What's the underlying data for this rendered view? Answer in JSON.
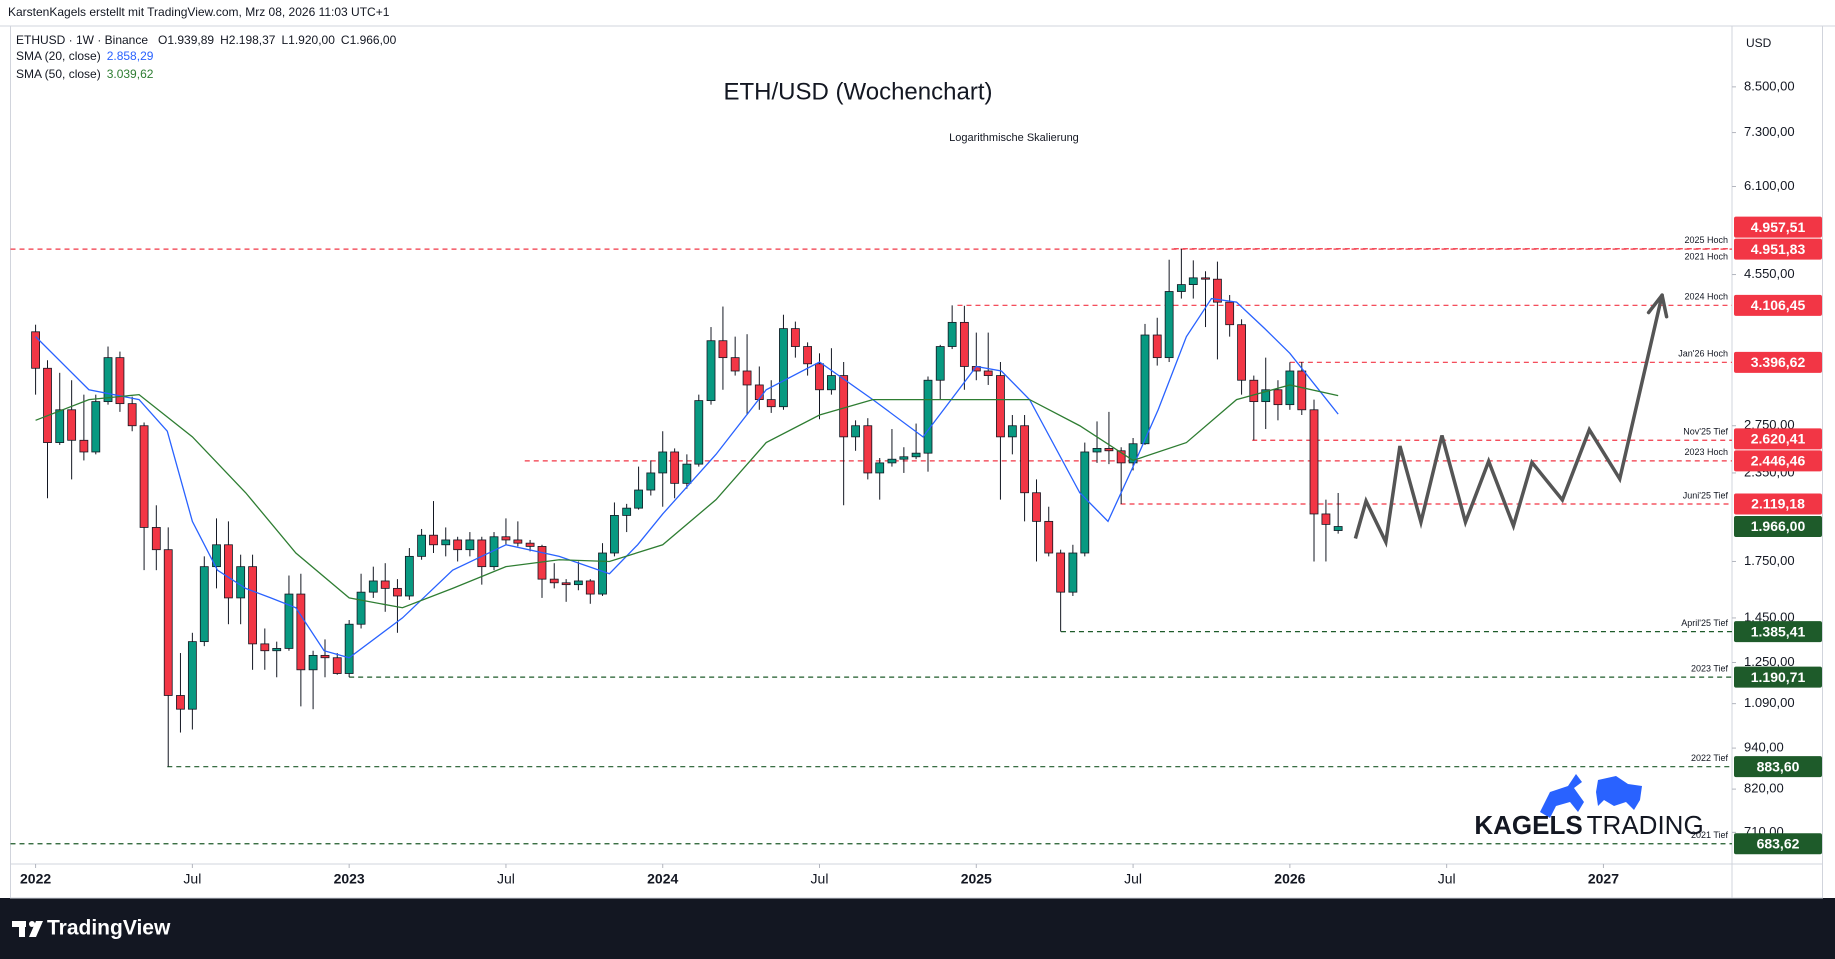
{
  "header": {
    "attribution": "KarstenKagels erstellt mit TradingView.com, Mrz 08, 2026 11:03 UTC+1"
  },
  "chart_data": {
    "type": "candlestick",
    "title": "ETH/USD (Wochenchart)",
    "subtitle": "Logarithmische Skalierung",
    "symbol_line": "ETHUSD · 1W · Binance",
    "last_bar": {
      "labels": [
        "O",
        "H",
        "L",
        "C"
      ],
      "values": [
        1939.89,
        2198.37,
        1920,
        1966
      ],
      "value_labels": [
        "1.939,89",
        "2.198,37",
        "1.920,00",
        "1.966,00"
      ]
    },
    "currency": "USD",
    "log_scale": true,
    "grid": false,
    "xlim": [
      2021.92,
      2027.41
    ],
    "ylim": [
      639,
      10410
    ],
    "xticks": [
      2022,
      {
        "value": 2022.5,
        "label": "Jul"
      },
      2023,
      {
        "value": 2023.5,
        "label": "Jul"
      },
      2024,
      {
        "value": 2024.5,
        "label": "Jul"
      },
      2025,
      {
        "value": 2025.5,
        "label": "Jul"
      },
      2026,
      {
        "value": 2026.5,
        "label": "Jul"
      },
      2027
    ],
    "yticks": [
      {
        "value": 8500,
        "label": "8.500,00"
      },
      {
        "value": 7300,
        "label": "7.300,00"
      },
      {
        "value": 6100,
        "label": "6.100,00"
      },
      {
        "value": 4550,
        "label": "4.550,00"
      },
      {
        "value": 2750,
        "label": "2.750,00"
      },
      {
        "value": 2350,
        "label": "2.350,00"
      },
      {
        "value": 1750,
        "label": "1.750,00"
      },
      {
        "value": 1450,
        "label": "1.450,00"
      },
      {
        "value": 1250,
        "label": "1.250,00"
      },
      {
        "value": 1090,
        "label": "1.090,00"
      },
      {
        "value": 940,
        "label": "940,00"
      },
      {
        "value": 820,
        "label": "820,00"
      },
      {
        "value": 710,
        "label": "710,00"
      }
    ],
    "x": [
      2022.0,
      2022.038,
      2022.077,
      2022.115,
      2022.154,
      2022.192,
      2022.231,
      2022.269,
      2022.308,
      2022.346,
      2022.385,
      2022.423,
      2022.462,
      2022.5,
      2022.538,
      2022.577,
      2022.615,
      2022.654,
      2022.692,
      2022.731,
      2022.769,
      2022.808,
      2022.846,
      2022.885,
      2022.923,
      2022.962,
      2023.0,
      2023.038,
      2023.077,
      2023.115,
      2023.154,
      2023.192,
      2023.231,
      2023.269,
      2023.308,
      2023.346,
      2023.385,
      2023.423,
      2023.462,
      2023.5,
      2023.538,
      2023.577,
      2023.615,
      2023.654,
      2023.692,
      2023.731,
      2023.769,
      2023.808,
      2023.846,
      2023.885,
      2023.923,
      2023.962,
      2024.0,
      2024.038,
      2024.077,
      2024.115,
      2024.154,
      2024.192,
      2024.231,
      2024.269,
      2024.308,
      2024.346,
      2024.385,
      2024.423,
      2024.462,
      2024.5,
      2024.538,
      2024.577,
      2024.615,
      2024.654,
      2024.692,
      2024.731,
      2024.769,
      2024.808,
      2024.846,
      2024.885,
      2024.923,
      2024.962,
      2025.0,
      2025.038,
      2025.077,
      2025.115,
      2025.154,
      2025.192,
      2025.231,
      2025.269,
      2025.308,
      2025.346,
      2025.385,
      2025.423,
      2025.462,
      2025.5,
      2025.538,
      2025.577,
      2025.615,
      2025.654,
      2025.692,
      2025.731,
      2025.769,
      2025.808,
      2025.846,
      2025.885,
      2025.923,
      2025.962,
      2026.0,
      2026.038,
      2026.077,
      2026.115,
      2026.154
    ],
    "series": [
      {
        "name": "ETHUSD",
        "up_color": "#089981",
        "down_color": "#f23645",
        "values": [
          [
            3760,
            3850,
            3050,
            3330
          ],
          [
            3330,
            3420,
            2160,
            2600
          ],
          [
            2600,
            3280,
            2580,
            2900
          ],
          [
            2900,
            3200,
            2300,
            2620
          ],
          [
            2620,
            3050,
            2450,
            2520
          ],
          [
            2520,
            3050,
            2500,
            2980
          ],
          [
            2980,
            3580,
            2950,
            3450
          ],
          [
            3450,
            3520,
            2880,
            2960
          ],
          [
            2960,
            3030,
            2700,
            2750
          ],
          [
            2750,
            2780,
            1700,
            1960
          ],
          [
            1960,
            2110,
            1700,
            1820
          ],
          [
            1820,
            1960,
            883.6,
            1120
          ],
          [
            1120,
            1290,
            990,
            1070
          ],
          [
            1070,
            1380,
            1000,
            1340
          ],
          [
            1340,
            1780,
            1320,
            1720
          ],
          [
            1720,
            2020,
            1600,
            1850
          ],
          [
            1850,
            2000,
            1420,
            1550
          ],
          [
            1550,
            1790,
            1420,
            1720
          ],
          [
            1720,
            1790,
            1220,
            1330
          ],
          [
            1330,
            1400,
            1220,
            1300
          ],
          [
            1300,
            1340,
            1190,
            1310
          ],
          [
            1310,
            1670,
            1300,
            1570
          ],
          [
            1570,
            1680,
            1080,
            1220
          ],
          [
            1220,
            1300,
            1070,
            1280
          ],
          [
            1280,
            1350,
            1190,
            1270
          ],
          [
            1270,
            1290,
            1200,
            1205
          ],
          [
            1205,
            1440,
            1190.71,
            1420
          ],
          [
            1420,
            1680,
            1400,
            1580
          ],
          [
            1580,
            1720,
            1550,
            1640
          ],
          [
            1640,
            1740,
            1480,
            1600
          ],
          [
            1600,
            1650,
            1380,
            1560
          ],
          [
            1560,
            1830,
            1540,
            1780
          ],
          [
            1780,
            1950,
            1760,
            1910
          ],
          [
            1910,
            2140,
            1800,
            1850
          ],
          [
            1850,
            1960,
            1780,
            1880
          ],
          [
            1880,
            1900,
            1750,
            1820
          ],
          [
            1820,
            1930,
            1780,
            1880
          ],
          [
            1880,
            1900,
            1620,
            1720
          ],
          [
            1720,
            1930,
            1700,
            1900
          ],
          [
            1900,
            2020,
            1850,
            1880
          ],
          [
            1880,
            2000,
            1840,
            1860
          ],
          [
            1860,
            1880,
            1810,
            1840
          ],
          [
            1840,
            1850,
            1550,
            1650
          ],
          [
            1650,
            1740,
            1600,
            1630
          ],
          [
            1630,
            1650,
            1530,
            1620
          ],
          [
            1620,
            1750,
            1590,
            1640
          ],
          [
            1640,
            1650,
            1520,
            1570
          ],
          [
            1570,
            1860,
            1560,
            1800
          ],
          [
            1800,
            2130,
            1780,
            2040
          ],
          [
            2040,
            2120,
            1930,
            2090
          ],
          [
            2090,
            2400,
            2080,
            2220
          ],
          [
            2220,
            2450,
            2180,
            2350
          ],
          [
            2350,
            2700,
            2100,
            2520
          ],
          [
            2520,
            2550,
            2160,
            2270
          ],
          [
            2270,
            2500,
            2230,
            2420
          ],
          [
            2420,
            3050,
            2400,
            2990
          ],
          [
            2990,
            3820,
            2950,
            3650
          ],
          [
            3650,
            4090,
            3100,
            3450
          ],
          [
            3450,
            3700,
            3250,
            3300
          ],
          [
            3300,
            3730,
            2850,
            3150
          ],
          [
            3150,
            3350,
            2900,
            3000
          ],
          [
            3000,
            3200,
            2870,
            2930
          ],
          [
            2930,
            3980,
            2900,
            3800
          ],
          [
            3800,
            3890,
            3450,
            3580
          ],
          [
            3580,
            3630,
            3250,
            3380
          ],
          [
            3380,
            3500,
            2810,
            3100
          ],
          [
            3100,
            3560,
            3050,
            3250
          ],
          [
            3250,
            3400,
            2110,
            2650
          ],
          [
            2650,
            2800,
            2530,
            2750
          ],
          [
            2750,
            2820,
            2300,
            2350
          ],
          [
            2350,
            2470,
            2150,
            2430
          ],
          [
            2430,
            2720,
            2400,
            2460
          ],
          [
            2460,
            2560,
            2350,
            2480
          ],
          [
            2480,
            2770,
            2460,
            2510
          ],
          [
            2510,
            3240,
            2360,
            3200
          ],
          [
            3200,
            3600,
            3000,
            3580
          ],
          [
            3580,
            4106.45,
            3550,
            3880
          ],
          [
            3880,
            4100,
            3100,
            3350
          ],
          [
            3350,
            3750,
            3200,
            3300
          ],
          [
            3300,
            3750,
            3150,
            3250
          ],
          [
            3250,
            3400,
            2150,
            2650
          ],
          [
            2650,
            2850,
            2500,
            2750
          ],
          [
            2750,
            2850,
            2000,
            2200
          ],
          [
            2200,
            2300,
            1750,
            2000
          ],
          [
            2000,
            2100,
            1780,
            1800
          ],
          [
            1800,
            1820,
            1385.41,
            1580
          ],
          [
            1580,
            1850,
            1560,
            1800
          ],
          [
            1800,
            2600,
            1780,
            2520
          ],
          [
            2520,
            2790,
            2430,
            2550
          ],
          [
            2550,
            2880,
            2420,
            2530
          ],
          [
            2530,
            2560,
            2119.18,
            2430
          ],
          [
            2430,
            2640,
            2370,
            2590
          ],
          [
            2590,
            3860,
            2580,
            3720
          ],
          [
            3720,
            3940,
            3360,
            3450
          ],
          [
            3450,
            4780,
            3400,
            4300
          ],
          [
            4300,
            4957.51,
            4200,
            4400
          ],
          [
            4400,
            4770,
            4200,
            4500
          ],
          [
            4500,
            4600,
            3820,
            4480
          ],
          [
            4480,
            4750,
            3430,
            4150
          ],
          [
            4150,
            4250,
            3700,
            3850
          ],
          [
            3850,
            3920,
            3050,
            3200
          ],
          [
            3200,
            3250,
            2620.41,
            2980
          ],
          [
            2980,
            3450,
            2720,
            3100
          ],
          [
            3100,
            3200,
            2800,
            2950
          ],
          [
            2950,
            3396.62,
            2900,
            3300
          ],
          [
            3300,
            3400,
            2850,
            2900
          ],
          [
            2900,
            3000,
            1750,
            2050
          ],
          [
            2050,
            2150,
            1750,
            1980
          ],
          [
            1939.89,
            2198.37,
            1920,
            1966
          ]
        ]
      }
    ],
    "indicators": [
      {
        "name": "SMA (20, close)",
        "color": "#2962ff",
        "last": {
          "value": 2858.29,
          "label": "2.858,29"
        },
        "x": [
          2022.0,
          2022.17,
          2022.33,
          2022.42,
          2022.5,
          2022.58,
          2022.67,
          2022.75,
          2022.83,
          2022.92,
          2023.0,
          2023.17,
          2023.33,
          2023.5,
          2023.67,
          2023.83,
          2023.92,
          2024.0,
          2024.17,
          2024.33,
          2024.5,
          2024.67,
          2024.83,
          2024.92,
          2025.0,
          2025.08,
          2025.17,
          2025.33,
          2025.42,
          2025.5,
          2025.58,
          2025.67,
          2025.75,
          2025.83,
          2025.92,
          2026.0,
          2026.08,
          2026.154
        ],
        "values": [
          3700,
          3100,
          3000,
          2700,
          2000,
          1700,
          1600,
          1550,
          1500,
          1300,
          1270,
          1450,
          1700,
          1850,
          1780,
          1680,
          1850,
          2050,
          2500,
          3100,
          3400,
          3000,
          2650,
          3000,
          3350,
          3300,
          3000,
          2200,
          2000,
          2400,
          2900,
          3700,
          4200,
          4150,
          3800,
          3500,
          3150,
          2858.29
        ]
      },
      {
        "name": "SMA (50, close)",
        "color": "#2e7d32",
        "last": {
          "value": 3039.62,
          "label": "3.039,62"
        },
        "x": [
          2022.0,
          2022.17,
          2022.33,
          2022.5,
          2022.67,
          2022.83,
          2023.0,
          2023.17,
          2023.33,
          2023.5,
          2023.67,
          2023.83,
          2024.0,
          2024.17,
          2024.33,
          2024.5,
          2024.67,
          2024.83,
          2025.0,
          2025.17,
          2025.33,
          2025.5,
          2025.67,
          2025.83,
          2026.0,
          2026.154
        ],
        "values": [
          2800,
          3000,
          3050,
          2650,
          2200,
          1800,
          1550,
          1500,
          1600,
          1720,
          1760,
          1750,
          1850,
          2150,
          2600,
          2850,
          3000,
          3000,
          3000,
          3000,
          2750,
          2450,
          2600,
          3000,
          3150,
          3039.62
        ]
      }
    ],
    "levels": [
      {
        "label": "2025 Hoch",
        "value": 4957.51,
        "value_label": "4.957,51",
        "start": 2025.63,
        "color": "#f23645"
      },
      {
        "label": "2021 Hoch",
        "value": 4951.83,
        "value_label": "4.951,83",
        "color": "#f23645"
      },
      {
        "label": "2024 Hoch",
        "value": 4106.45,
        "value_label": "4.106,45",
        "start": 2024.94,
        "color": "#f23645"
      },
      {
        "label": "Jan'26 Hoch",
        "value": 3396.62,
        "value_label": "3.396,62",
        "start": 2026.0,
        "color": "#f23645"
      },
      {
        "label": "Nov'25 Tief",
        "value": 2620.41,
        "value_label": "2.620,41",
        "start": 2025.88,
        "color": "#f23645"
      },
      {
        "label": "2023 Hoch",
        "value": 2446.46,
        "value_label": "2.446,46",
        "start": 2023.56,
        "color": "#f23645"
      },
      {
        "label": "Juni'25 Tief",
        "value": 2119.18,
        "value_label": "2.119,18",
        "start": 2025.46,
        "color": "#f23645"
      },
      {
        "label": "April'25 Tief",
        "value": 1385.41,
        "value_label": "1.385,41",
        "start": 2025.27,
        "color": "#1e5b2a"
      },
      {
        "label": "2023 Tief",
        "value": 1190.71,
        "value_label": "1.190,71",
        "start": 2023.0,
        "color": "#1e5b2a"
      },
      {
        "label": "2022 Tief",
        "value": 883.6,
        "value_label": "883,60",
        "start": 2022.42,
        "color": "#1e5b2a"
      },
      {
        "label": "2021 Tief",
        "value": 683.62,
        "value_label": "683,62",
        "color": "#1e5b2a"
      }
    ],
    "current_price": {
      "value": 1966,
      "label": "1.966,00",
      "color": "#1e5b2a"
    },
    "forecast": {
      "color": "#555555",
      "x": [
        2026.209,
        2026.243,
        2026.306,
        2026.351,
        2026.418,
        2026.485,
        2026.56,
        2026.634,
        2026.713,
        2026.772,
        2026.869,
        2026.955,
        2027.052,
        2027.187
      ],
      "values": [
        1889,
        2140,
        1867,
        2570,
        1995,
        2662,
        1995,
        2443,
        1971,
        2434,
        2148,
        2714,
        2304,
        4248
      ]
    },
    "watermark": {
      "bold": "KAGELS",
      "light": "TRADING"
    }
  },
  "footer": {
    "brand": "TradingView"
  }
}
